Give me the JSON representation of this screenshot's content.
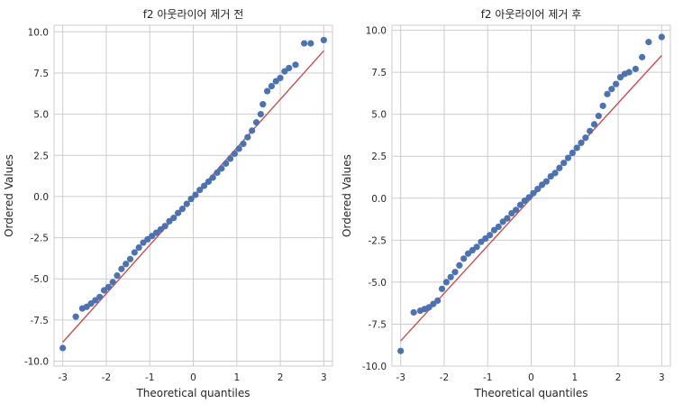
{
  "chart_data": [
    {
      "type": "scatter",
      "title": "f2 아웃라이어 제거 전",
      "xlabel": "Theoretical quantiles",
      "ylabel": "Ordered Values",
      "xlim": [
        -3.2,
        3.2
      ],
      "ylim": [
        -10.3,
        10.4
      ],
      "xticks": [
        -3,
        -2,
        -1,
        0,
        1,
        2,
        3
      ],
      "xtick_labels": [
        "-3",
        "-2",
        "-1",
        "0",
        "1",
        "2",
        "3"
      ],
      "yticks": [
        -10,
        -7.5,
        -5,
        -2.5,
        0,
        2.5,
        5,
        7.5,
        10
      ],
      "ytick_labels": [
        "-10.0",
        "-7.5",
        "-5.0",
        "-2.5",
        "0.0",
        "2.5",
        "5.0",
        "7.5",
        "10.0"
      ],
      "grid": true,
      "point_color": "#4c72b0",
      "line_color": "#c44e52",
      "fit_line": {
        "x": [
          -3.0,
          3.0
        ],
        "y": [
          -8.85,
          8.85
        ]
      },
      "points": [
        [
          -3.0,
          -9.2
        ],
        [
          -2.7,
          -7.3
        ],
        [
          -2.55,
          -6.8
        ],
        [
          -2.45,
          -6.7
        ],
        [
          -2.35,
          -6.5
        ],
        [
          -2.25,
          -6.3
        ],
        [
          -2.15,
          -6.1
        ],
        [
          -2.05,
          -5.7
        ],
        [
          -1.95,
          -5.5
        ],
        [
          -1.85,
          -5.2
        ],
        [
          -1.75,
          -4.8
        ],
        [
          -1.65,
          -4.4
        ],
        [
          -1.55,
          -4.1
        ],
        [
          -1.45,
          -3.8
        ],
        [
          -1.35,
          -3.4
        ],
        [
          -1.25,
          -3.1
        ],
        [
          -1.15,
          -2.8
        ],
        [
          -1.05,
          -2.6
        ],
        [
          -0.95,
          -2.4
        ],
        [
          -0.85,
          -2.2
        ],
        [
          -0.75,
          -2.0
        ],
        [
          -0.65,
          -1.8
        ],
        [
          -0.55,
          -1.5
        ],
        [
          -0.45,
          -1.3
        ],
        [
          -0.35,
          -1.0
        ],
        [
          -0.25,
          -0.75
        ],
        [
          -0.15,
          -0.45
        ],
        [
          -0.05,
          -0.15
        ],
        [
          0.05,
          0.1
        ],
        [
          0.15,
          0.4
        ],
        [
          0.25,
          0.65
        ],
        [
          0.35,
          0.9
        ],
        [
          0.45,
          1.15
        ],
        [
          0.55,
          1.45
        ],
        [
          0.65,
          1.7
        ],
        [
          0.75,
          2.0
        ],
        [
          0.85,
          2.3
        ],
        [
          0.95,
          2.6
        ],
        [
          1.05,
          2.9
        ],
        [
          1.15,
          3.2
        ],
        [
          1.25,
          3.6
        ],
        [
          1.35,
          4.0
        ],
        [
          1.45,
          4.5
        ],
        [
          1.55,
          5.0
        ],
        [
          1.6,
          5.6
        ],
        [
          1.7,
          6.4
        ],
        [
          1.8,
          6.7
        ],
        [
          1.9,
          7.0
        ],
        [
          2.0,
          7.2
        ],
        [
          2.1,
          7.6
        ],
        [
          2.2,
          7.8
        ],
        [
          2.35,
          8.0
        ],
        [
          2.55,
          9.3
        ],
        [
          2.7,
          9.3
        ],
        [
          3.0,
          9.5
        ]
      ]
    },
    {
      "type": "scatter",
      "title": "f2 아웃라이어 제거 후",
      "xlabel": "Theoretical quantiles",
      "ylabel": "Ordered Values",
      "xlim": [
        -3.2,
        3.2
      ],
      "ylim": [
        -10.0,
        10.3
      ],
      "xticks": [
        -3,
        -2,
        -1,
        0,
        1,
        2,
        3
      ],
      "xtick_labels": [
        "-3",
        "-2",
        "-1",
        "0",
        "1",
        "2",
        "3"
      ],
      "yticks": [
        -10,
        -7.5,
        -5,
        -2.5,
        0,
        2.5,
        5,
        7.5,
        10
      ],
      "ytick_labels": [
        "-10.0",
        "-7.5",
        "-5.0",
        "-2.5",
        "0.0",
        "2.5",
        "5.0",
        "7.5",
        "10.0"
      ],
      "grid": true,
      "point_color": "#4c72b0",
      "line_color": "#c44e52",
      "fit_line": {
        "x": [
          -3.0,
          3.0
        ],
        "y": [
          -8.5,
          8.5
        ]
      },
      "points": [
        [
          -3.0,
          -9.1
        ],
        [
          -2.7,
          -6.8
        ],
        [
          -2.55,
          -6.7
        ],
        [
          -2.45,
          -6.6
        ],
        [
          -2.35,
          -6.5
        ],
        [
          -2.25,
          -6.3
        ],
        [
          -2.15,
          -6.1
        ],
        [
          -2.05,
          -5.4
        ],
        [
          -1.95,
          -5.0
        ],
        [
          -1.85,
          -4.7
        ],
        [
          -1.75,
          -4.4
        ],
        [
          -1.65,
          -4.0
        ],
        [
          -1.55,
          -3.6
        ],
        [
          -1.45,
          -3.3
        ],
        [
          -1.35,
          -3.1
        ],
        [
          -1.25,
          -2.9
        ],
        [
          -1.15,
          -2.6
        ],
        [
          -1.05,
          -2.4
        ],
        [
          -0.95,
          -2.2
        ],
        [
          -0.85,
          -1.9
        ],
        [
          -0.75,
          -1.7
        ],
        [
          -0.65,
          -1.4
        ],
        [
          -0.55,
          -1.2
        ],
        [
          -0.45,
          -0.9
        ],
        [
          -0.35,
          -0.7
        ],
        [
          -0.25,
          -0.4
        ],
        [
          -0.15,
          -0.15
        ],
        [
          -0.05,
          0.05
        ],
        [
          0.05,
          0.3
        ],
        [
          0.15,
          0.55
        ],
        [
          0.25,
          0.8
        ],
        [
          0.35,
          1.0
        ],
        [
          0.45,
          1.3
        ],
        [
          0.55,
          1.5
        ],
        [
          0.65,
          1.8
        ],
        [
          0.75,
          2.1
        ],
        [
          0.85,
          2.4
        ],
        [
          0.95,
          2.7
        ],
        [
          1.05,
          3.0
        ],
        [
          1.15,
          3.3
        ],
        [
          1.25,
          3.6
        ],
        [
          1.35,
          4.0
        ],
        [
          1.45,
          4.4
        ],
        [
          1.55,
          4.9
        ],
        [
          1.65,
          5.5
        ],
        [
          1.75,
          6.2
        ],
        [
          1.85,
          6.5
        ],
        [
          1.95,
          6.8
        ],
        [
          2.05,
          7.2
        ],
        [
          2.15,
          7.4
        ],
        [
          2.25,
          7.5
        ],
        [
          2.4,
          7.7
        ],
        [
          2.55,
          8.4
        ],
        [
          2.7,
          9.3
        ],
        [
          3.0,
          9.6
        ]
      ]
    }
  ]
}
